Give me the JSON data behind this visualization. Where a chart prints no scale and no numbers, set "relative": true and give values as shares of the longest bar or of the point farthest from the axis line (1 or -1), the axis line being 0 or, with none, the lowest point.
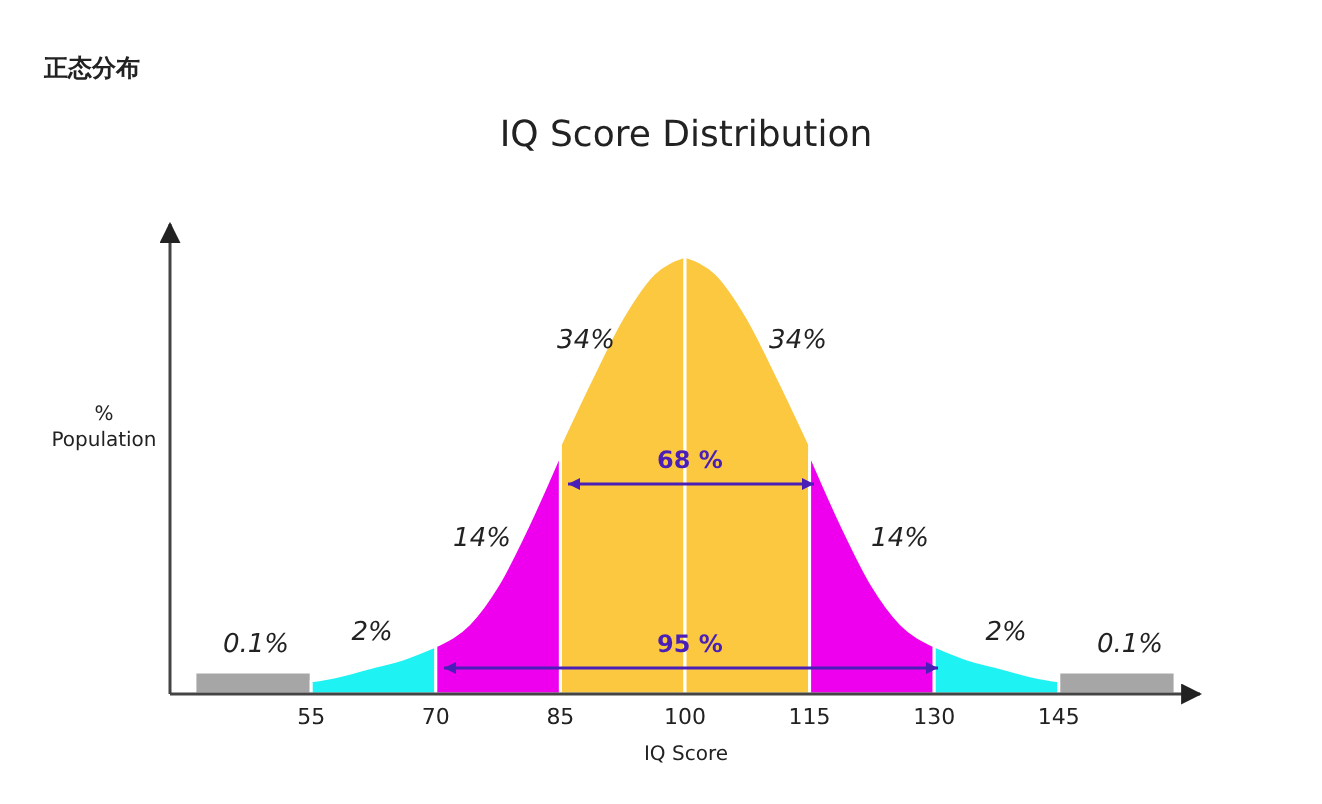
{
  "chart_data": {
    "type": "area",
    "title": "IQ Score Distribution",
    "subtitle": "正态分布",
    "xlabel": "IQ Score",
    "ylabel": "% Population",
    "relative": true,
    "xlim": [
      38,
      162
    ],
    "xticks": [
      55,
      70,
      85,
      100,
      115,
      130,
      145
    ],
    "series": [
      {
        "color": "#a6a6a6",
        "x": [
          41,
          55
        ],
        "values": [
          0.05,
          0.05
        ]
      },
      {
        "color": "#1ff2f2",
        "x": [
          55,
          58,
          62,
          66,
          70
        ],
        "values": [
          0.03,
          0.04,
          0.06,
          0.08,
          0.11
        ]
      },
      {
        "color": "#ee00ee",
        "x": [
          70,
          74,
          77.5,
          81,
          85
        ],
        "values": [
          0.11,
          0.16,
          0.25,
          0.38,
          0.55
        ]
      },
      {
        "color": "#fcc840",
        "x": [
          85,
          88.75,
          92.5,
          96.25,
          100
        ],
        "values": [
          0.57,
          0.72,
          0.86,
          0.96,
          1
        ]
      },
      {
        "color": "#fcc840",
        "x": [
          100,
          103.75,
          107.5,
          111.25,
          115
        ],
        "values": [
          1,
          0.96,
          0.86,
          0.72,
          0.57
        ]
      },
      {
        "color": "#ee00ee",
        "x": [
          115,
          119,
          122.5,
          126,
          130
        ],
        "values": [
          0.55,
          0.38,
          0.25,
          0.16,
          0.11
        ]
      },
      {
        "color": "#1ff2f2",
        "x": [
          130,
          134,
          138,
          142,
          145
        ],
        "values": [
          0.11,
          0.08,
          0.06,
          0.04,
          0.03
        ]
      },
      {
        "color": "#a6a6a6",
        "x": [
          145,
          159
        ],
        "values": [
          0.05,
          0.05
        ]
      }
    ],
    "annotations": [
      "0.1%",
      "2%",
      "14%",
      "34%",
      "34%",
      "14%",
      "2%",
      "0.1%",
      "68 %",
      "95 %"
    ]
  }
}
